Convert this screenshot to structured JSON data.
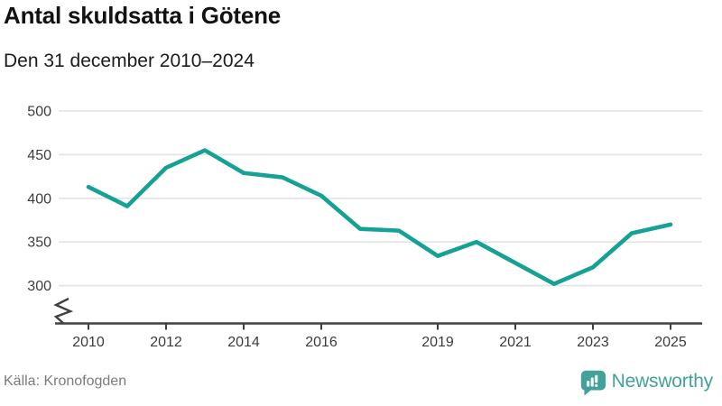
{
  "header": {
    "title": "Antal skuldsatta i Götene",
    "subtitle": "Den 31 december 2010–2024"
  },
  "chart_data": {
    "type": "line",
    "title": "Antal skuldsatta i Götene",
    "subtitle": "Den 31 december 2010–2024",
    "x": [
      2010,
      2011,
      2012,
      2013,
      2014,
      2015,
      2016,
      2017,
      2018,
      2019,
      2020,
      2021,
      2022,
      2023,
      2024,
      2025
    ],
    "values": [
      413,
      391,
      435,
      455,
      429,
      424,
      403,
      365,
      363,
      334,
      350,
      326,
      302,
      321,
      360,
      370
    ],
    "xlabel": "",
    "ylabel": "",
    "ylim": [
      275,
      510
    ],
    "yticks": [
      300,
      350,
      400,
      450,
      500
    ],
    "xticks": [
      2010,
      2012,
      2014,
      2016,
      2019,
      2021,
      2023,
      2025
    ],
    "grid": "horizontal",
    "legend": "none",
    "axis_break": true
  },
  "footer": {
    "source": "Källa: Kronofogden",
    "brand": "Newsworthy",
    "logo_icon": "bar-chart-speech-bubble-icon"
  },
  "colors": {
    "line": "#15a294",
    "grid": "#e3e3e3",
    "axis": "#404040",
    "tick_label": "#3c3c3c",
    "title": "#121212",
    "source_text": "#7b7b7b",
    "brand_teal": "#42a29a"
  }
}
